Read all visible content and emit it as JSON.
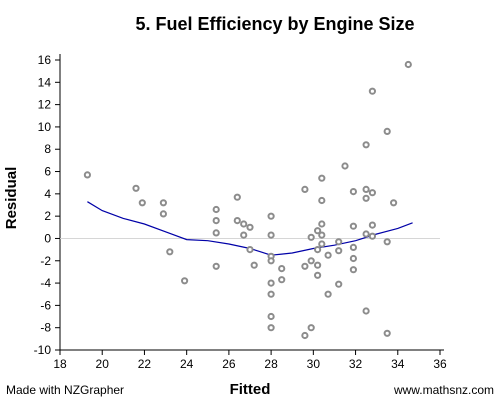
{
  "chart_data": {
    "type": "scatter",
    "title": "5. Fuel Efficiency by Engine Size",
    "xlabel": "Fitted",
    "ylabel": "Residual",
    "xlim": [
      18,
      36
    ],
    "ylim": [
      -10,
      16
    ],
    "xticks": [
      "18",
      "20",
      "22",
      "24",
      "26",
      "28",
      "30",
      "32",
      "34",
      "36"
    ],
    "yticks": [
      "16",
      "14",
      "12",
      "10",
      "8",
      "6",
      "4",
      "2",
      "0",
      "-2",
      "-4",
      "-6",
      "-8",
      "-10"
    ],
    "grid": false,
    "zero_line": 0,
    "points": [
      [
        19.3,
        5.7
      ],
      [
        21.6,
        4.5
      ],
      [
        21.9,
        3.2
      ],
      [
        22.9,
        3.2
      ],
      [
        22.9,
        2.2
      ],
      [
        23.2,
        -1.2
      ],
      [
        23.9,
        -3.8
      ],
      [
        25.4,
        2.6
      ],
      [
        25.4,
        1.6
      ],
      [
        25.4,
        0.5
      ],
      [
        25.4,
        -2.5
      ],
      [
        26.4,
        3.7
      ],
      [
        26.4,
        1.6
      ],
      [
        26.7,
        1.3
      ],
      [
        26.7,
        0.3
      ],
      [
        27.0,
        1.0
      ],
      [
        27.0,
        -1.0
      ],
      [
        27.2,
        -2.4
      ],
      [
        28.0,
        2.0
      ],
      [
        28.0,
        0.3
      ],
      [
        28.0,
        -1.6
      ],
      [
        28.0,
        -2.0
      ],
      [
        28.0,
        -4.0
      ],
      [
        28.0,
        -5.0
      ],
      [
        28.0,
        -7.0
      ],
      [
        28.0,
        -8.0
      ],
      [
        28.5,
        -2.7
      ],
      [
        28.5,
        -3.7
      ],
      [
        29.6,
        4.4
      ],
      [
        29.6,
        -2.5
      ],
      [
        29.6,
        -8.7
      ],
      [
        29.9,
        0.1
      ],
      [
        29.9,
        -2.0
      ],
      [
        29.9,
        -8.0
      ],
      [
        30.2,
        0.7
      ],
      [
        30.2,
        -1.0
      ],
      [
        30.2,
        -2.4
      ],
      [
        30.2,
        -3.3
      ],
      [
        30.4,
        5.4
      ],
      [
        30.4,
        3.4
      ],
      [
        30.4,
        1.3
      ],
      [
        30.4,
        0.3
      ],
      [
        30.4,
        -0.5
      ],
      [
        30.7,
        -1.5
      ],
      [
        30.7,
        -5.0
      ],
      [
        31.2,
        -0.3
      ],
      [
        31.2,
        -1.1
      ],
      [
        31.2,
        -4.1
      ],
      [
        31.5,
        6.5
      ],
      [
        31.9,
        4.2
      ],
      [
        31.9,
        1.1
      ],
      [
        31.9,
        -0.8
      ],
      [
        31.9,
        -1.8
      ],
      [
        31.9,
        -2.8
      ],
      [
        32.5,
        8.4
      ],
      [
        32.5,
        4.4
      ],
      [
        32.5,
        3.6
      ],
      [
        32.5,
        0.4
      ],
      [
        32.5,
        -6.5
      ],
      [
        32.8,
        13.2
      ],
      [
        32.8,
        4.1
      ],
      [
        32.8,
        1.2
      ],
      [
        32.8,
        0.2
      ],
      [
        33.5,
        9.6
      ],
      [
        33.5,
        -0.3
      ],
      [
        33.5,
        -8.5
      ],
      [
        33.8,
        3.2
      ],
      [
        34.5,
        15.6
      ]
    ],
    "smoother": [
      [
        19.3,
        3.3
      ],
      [
        20.0,
        2.5
      ],
      [
        21.0,
        1.8
      ],
      [
        22.0,
        1.3
      ],
      [
        23.0,
        0.6
      ],
      [
        24.0,
        -0.1
      ],
      [
        25.0,
        -0.2
      ],
      [
        26.0,
        -0.5
      ],
      [
        27.0,
        -0.9
      ],
      [
        27.5,
        -1.2
      ],
      [
        28.0,
        -1.5
      ],
      [
        28.5,
        -1.4
      ],
      [
        29.0,
        -1.3
      ],
      [
        30.0,
        -0.9
      ],
      [
        31.0,
        -0.6
      ],
      [
        32.0,
        -0.2
      ],
      [
        33.0,
        0.4
      ],
      [
        34.0,
        0.9
      ],
      [
        34.7,
        1.4
      ]
    ],
    "colors": {
      "points": "#8c8c8c",
      "smoother": "#0000a8",
      "zero_line": "#d0d0d0"
    }
  },
  "footer": {
    "left": "Made with NZGrapher",
    "right": "www.mathsnz.com"
  }
}
